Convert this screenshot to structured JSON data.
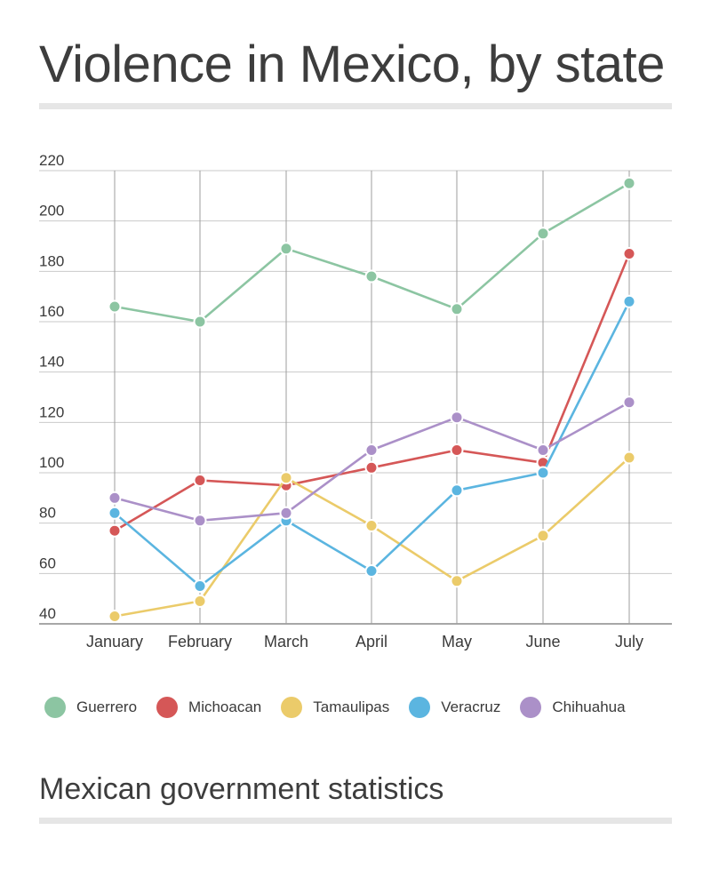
{
  "header": {
    "title": "Violence in Mexico, by state"
  },
  "footer": {
    "subtitle": "Mexican government statistics"
  },
  "chart_data": {
    "type": "line",
    "title": "Violence in Mexico, by state",
    "categories": [
      "January",
      "February",
      "March",
      "April",
      "May",
      "June",
      "July"
    ],
    "ylim": [
      40,
      220
    ],
    "yticks": [
      40,
      60,
      80,
      100,
      120,
      140,
      160,
      180,
      200,
      220
    ],
    "grid": true,
    "legend_position": "bottom",
    "series": [
      {
        "name": "Guerrero",
        "color": "#8cc5a2",
        "values": [
          166,
          160,
          189,
          178,
          165,
          195,
          215
        ]
      },
      {
        "name": "Michoacan",
        "color": "#d55757",
        "values": [
          77,
          97,
          95,
          102,
          109,
          104,
          187
        ]
      },
      {
        "name": "Tamaulipas",
        "color": "#ebcb6a",
        "values": [
          43,
          49,
          98,
          79,
          57,
          75,
          106
        ]
      },
      {
        "name": "Veracruz",
        "color": "#5bb5e0",
        "values": [
          84,
          55,
          81,
          61,
          93,
          100,
          168
        ]
      },
      {
        "name": "Chihuahua",
        "color": "#ab90c8",
        "values": [
          90,
          81,
          84,
          109,
          122,
          109,
          128
        ]
      }
    ]
  }
}
